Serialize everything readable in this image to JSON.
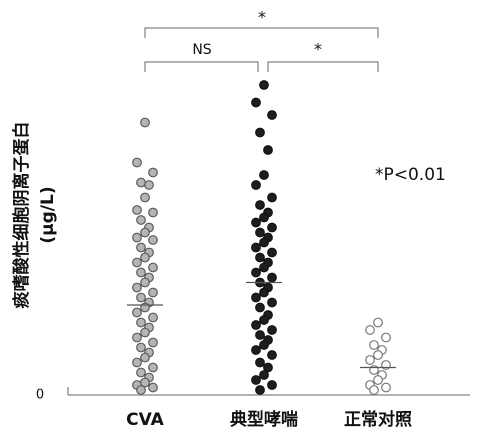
{
  "chart_data": {
    "type": "strip",
    "y_label": "痰嗜酸性细胞阴离子蛋白",
    "y_unit": "(μg/L)",
    "categories": [
      "CVA",
      "典型哮喘",
      "正常对照"
    ],
    "ylim": [
      0,
      130
    ],
    "yticks": [
      0
    ],
    "series": [
      {
        "color": "#b5b5b5",
        "stroke": "#5a5a5a",
        "mean": 36,
        "values": [
          109,
          93,
          89,
          85,
          84,
          79,
          74,
          73,
          70,
          67,
          65,
          63,
          62,
          59,
          57,
          55,
          53,
          51,
          49,
          47,
          45,
          43,
          41,
          39,
          37,
          35,
          33,
          31,
          29,
          27,
          25,
          23,
          21,
          19,
          17,
          15,
          13,
          11,
          9,
          7,
          5,
          4,
          3,
          2
        ]
      },
      {
        "color": "#1e1e1e",
        "stroke": "#111111",
        "mean": 45,
        "values": [
          124,
          117,
          112,
          105,
          98,
          88,
          84,
          79,
          76,
          73,
          71,
          69,
          67,
          65,
          63,
          61,
          59,
          57,
          55,
          53,
          51,
          49,
          47,
          45,
          43,
          41,
          39,
          37,
          35,
          32,
          30,
          28,
          26,
          24,
          22,
          20,
          18,
          16,
          13,
          11,
          8,
          6,
          4,
          2
        ]
      },
      {
        "color": "#ffffff",
        "stroke": "#777777",
        "mean": 11,
        "values": [
          29,
          26,
          23,
          20,
          18,
          16,
          14,
          12,
          10,
          8,
          6,
          4,
          3,
          2
        ]
      }
    ],
    "annotations": [
      "*",
      "NS",
      "*",
      "*P<0.01"
    ]
  }
}
